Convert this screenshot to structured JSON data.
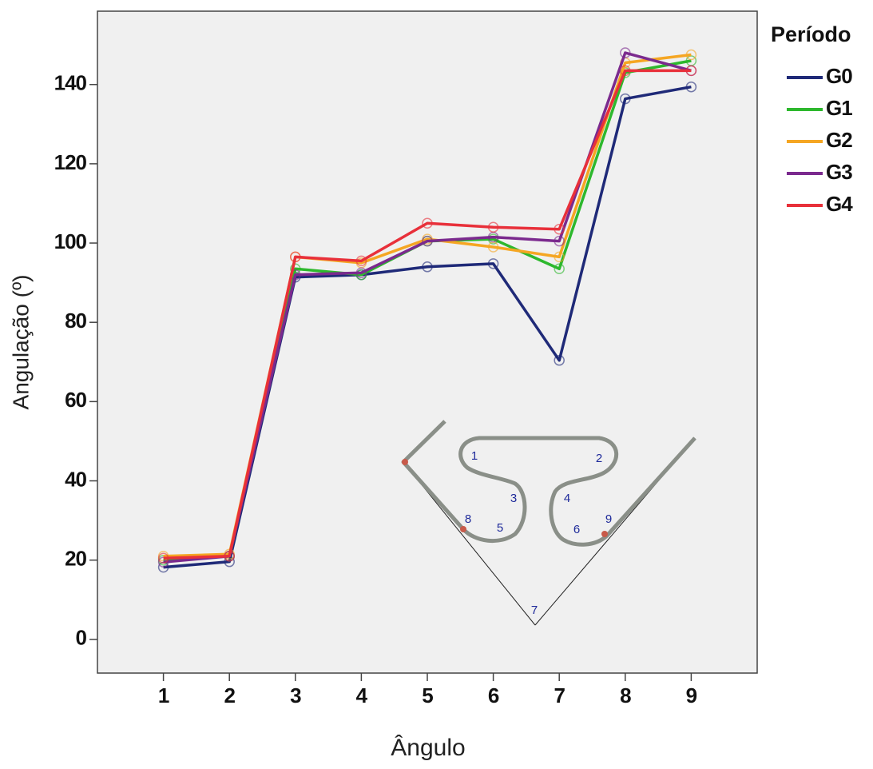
{
  "chart_data": {
    "type": "line",
    "x_label": "Ângulo",
    "y_label": "Angulação (º)",
    "legend_title": "Período",
    "legend": "right",
    "x": [
      1,
      2,
      3,
      4,
      5,
      6,
      7,
      8,
      9
    ],
    "xlim": [
      0,
      10
    ],
    "xticks": [
      1,
      2,
      3,
      4,
      5,
      6,
      7,
      8,
      9
    ],
    "ylim": [
      -8.5,
      158.5
    ],
    "yticks": [
      0,
      20,
      40,
      60,
      80,
      100,
      120,
      140
    ],
    "series": [
      {
        "name": "G0",
        "color": "#1f2a78",
        "values": [
          18.2,
          19.6,
          91.4,
          92.0,
          94.0,
          94.8,
          70.4,
          136.4,
          139.4
        ]
      },
      {
        "name": "G1",
        "color": "#2db82d",
        "values": [
          20,
          21,
          93.5,
          92,
          100.5,
          101,
          93.5,
          143,
          146
        ]
      },
      {
        "name": "G2",
        "color": "#f5a623",
        "values": [
          21,
          21.5,
          96.5,
          95,
          101,
          99,
          96.5,
          145.5,
          147.5
        ]
      },
      {
        "name": "G3",
        "color": "#7b2a8e",
        "values": [
          19.5,
          21,
          92,
          92.5,
          100.5,
          101.5,
          100.5,
          148,
          143.5
        ]
      },
      {
        "name": "G4",
        "color": "#e8303a",
        "values": [
          20.5,
          21,
          96.5,
          95.5,
          105,
          104,
          103.5,
          143.5,
          143.5
        ]
      }
    ],
    "annotations": [
      "1",
      "2",
      "3",
      "4",
      "5",
      "6",
      "7",
      "8",
      "9"
    ]
  }
}
